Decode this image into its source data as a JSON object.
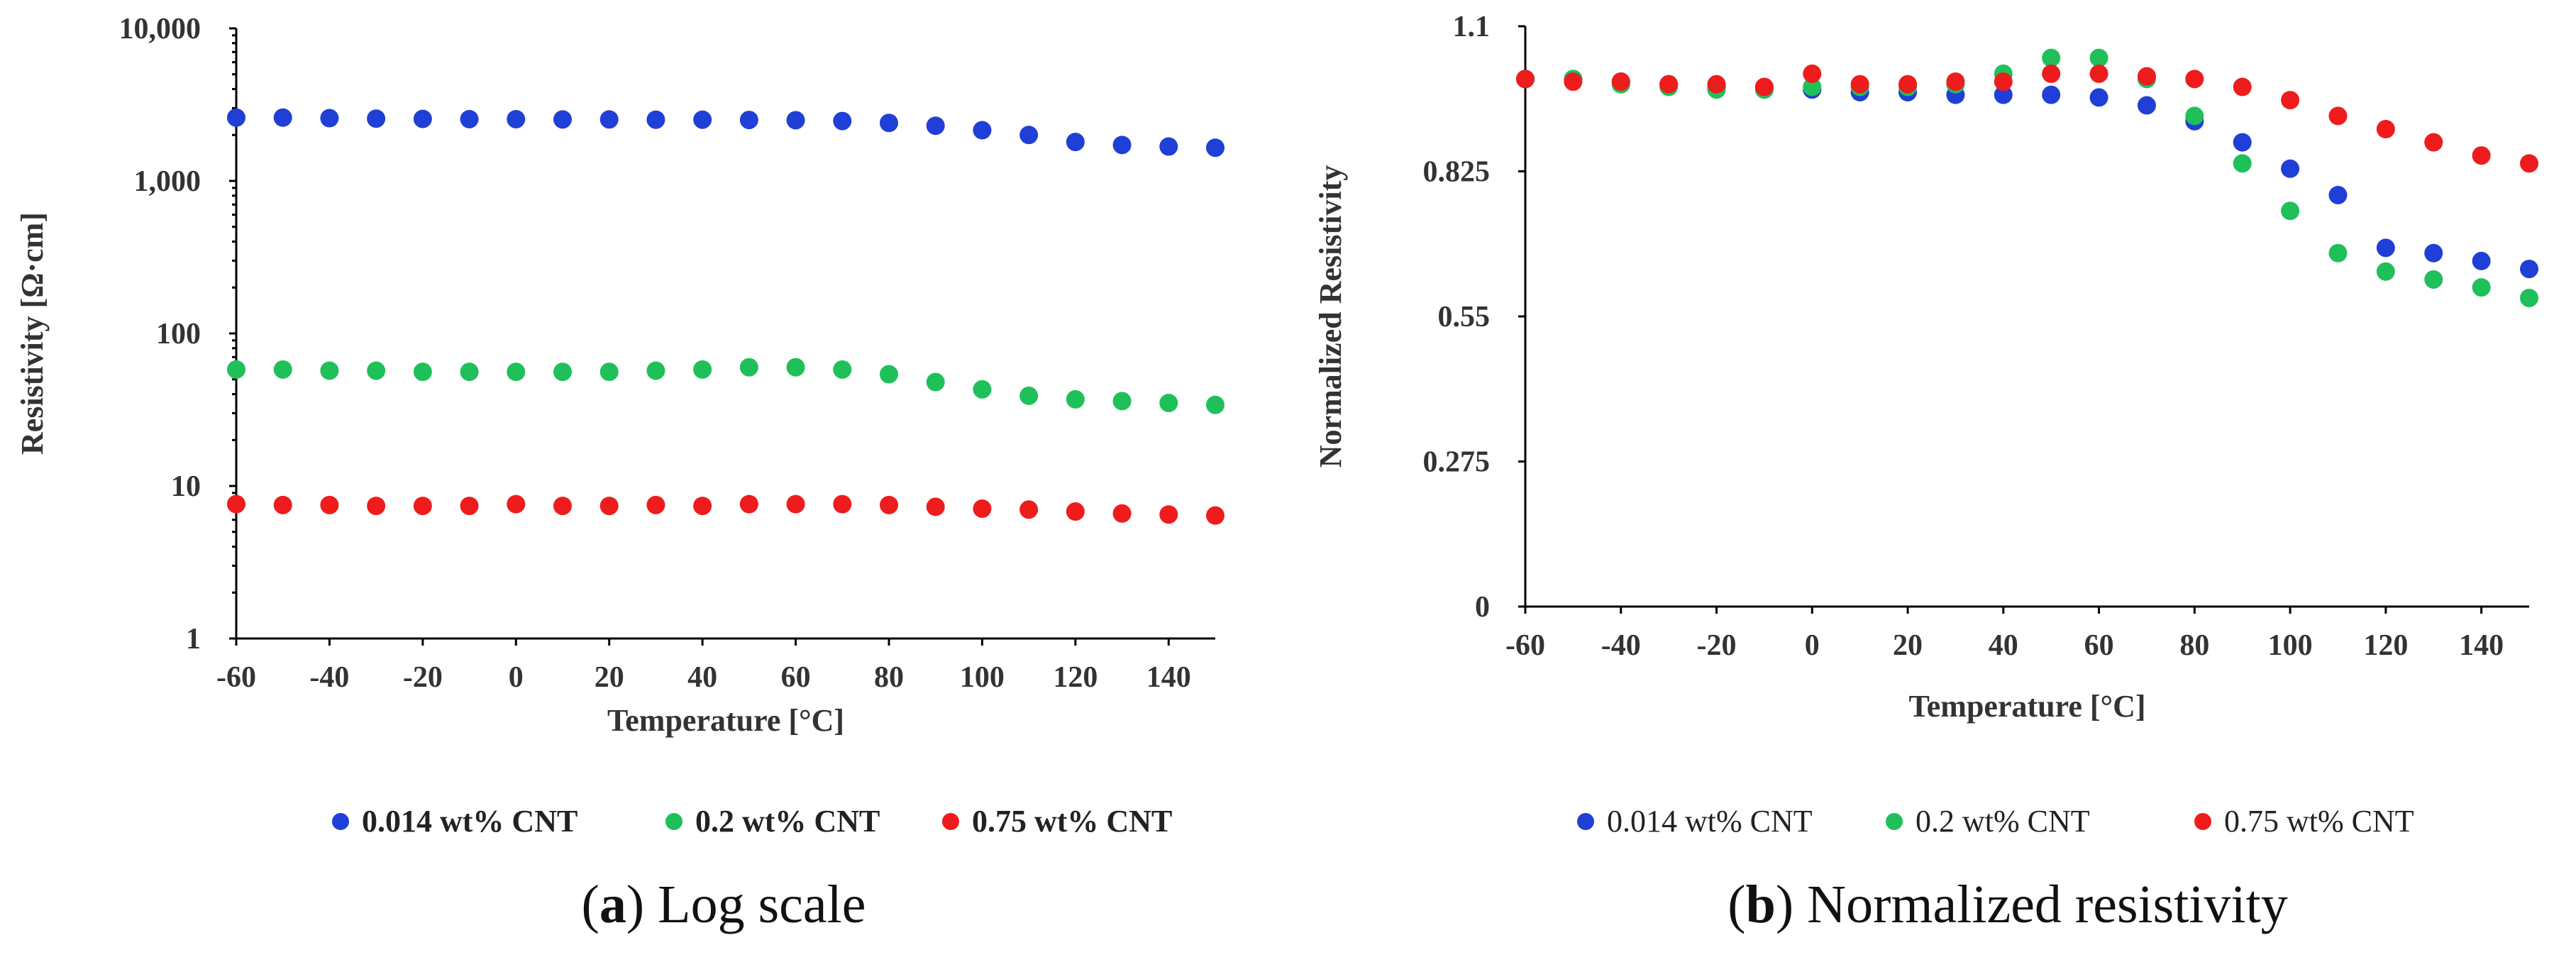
{
  "chart_data": [
    {
      "id": "a",
      "type": "scatter",
      "yscale": "log",
      "caption_letter": "a",
      "caption_text": " Log scale",
      "xlabel": "Temperature [°C]",
      "ylabel": "Resistivity [Ω·cm]",
      "xlim": [
        -60,
        150
      ],
      "ylim": [
        1,
        10000
      ],
      "x_ticks": [
        "-60",
        "-40",
        "-20",
        "0",
        "20",
        "40",
        "60",
        "80",
        "100",
        "120",
        "140"
      ],
      "y_ticks": [
        "1",
        "10",
        "100",
        "1,000",
        "10,000"
      ],
      "grid": false,
      "legend_position": "bottom",
      "x": [
        -60,
        -50,
        -40,
        -30,
        -20,
        -10,
        0,
        10,
        20,
        30,
        40,
        50,
        60,
        70,
        80,
        90,
        100,
        110,
        120,
        130,
        140,
        150
      ],
      "series": [
        {
          "name": "0.014 wt% CNT",
          "color": "#1f3fd6",
          "values": [
            2600,
            2600,
            2580,
            2560,
            2550,
            2540,
            2540,
            2530,
            2530,
            2520,
            2520,
            2510,
            2500,
            2470,
            2400,
            2300,
            2150,
            2000,
            1800,
            1720,
            1680,
            1650
          ]
        },
        {
          "name": "0.2 wt% CNT",
          "color": "#1fc05a",
          "values": [
            58,
            58,
            57,
            57,
            56,
            56,
            56,
            56,
            56,
            57,
            58,
            60,
            60,
            58,
            54,
            48,
            43,
            39,
            37,
            36,
            35,
            34
          ]
        },
        {
          "name": "0.75 wt% CNT",
          "color": "#ee1c1c",
          "values": [
            7.6,
            7.5,
            7.5,
            7.4,
            7.4,
            7.4,
            7.6,
            7.4,
            7.4,
            7.5,
            7.4,
            7.6,
            7.6,
            7.6,
            7.5,
            7.3,
            7.1,
            7.0,
            6.8,
            6.6,
            6.5,
            6.4
          ]
        }
      ]
    },
    {
      "id": "b",
      "type": "scatter",
      "yscale": "linear",
      "caption_letter": "b",
      "caption_text": " Normalized resistivity",
      "xlabel": "Temperature [°C]",
      "ylabel": "Normalized  Resistivity",
      "xlim": [
        -60,
        150
      ],
      "ylim": [
        0,
        1.1
      ],
      "x_ticks": [
        "-60",
        "-40",
        "-20",
        "0",
        "20",
        "40",
        "60",
        "80",
        "100",
        "120",
        "140"
      ],
      "y_ticks": [
        "0",
        "0.275",
        "0.55",
        "0.825",
        "1.1"
      ],
      "grid": false,
      "legend_position": "bottom",
      "x": [
        -60,
        -50,
        -40,
        -30,
        -20,
        -10,
        0,
        10,
        20,
        30,
        40,
        50,
        60,
        70,
        80,
        90,
        100,
        110,
        120,
        130,
        140,
        150
      ],
      "series": [
        {
          "name": "0.014 wt% CNT",
          "color": "#1f3fd6",
          "values": [
            1.0,
            1.0,
            0.995,
            0.99,
            0.985,
            0.98,
            0.98,
            0.975,
            0.975,
            0.97,
            0.97,
            0.97,
            0.965,
            0.95,
            0.92,
            0.88,
            0.83,
            0.78,
            0.68,
            0.67,
            0.655,
            0.64
          ]
        },
        {
          "name": "0.2 wt% CNT",
          "color": "#1fc05a",
          "values": [
            1.0,
            1.0,
            0.99,
            0.985,
            0.98,
            0.98,
            0.985,
            0.985,
            0.985,
            0.99,
            1.01,
            1.04,
            1.04,
            1.0,
            0.93,
            0.84,
            0.75,
            0.67,
            0.635,
            0.62,
            0.605,
            0.585
          ]
        },
        {
          "name": "0.75 wt% CNT",
          "color": "#ee1c1c",
          "values": [
            1.0,
            0.995,
            0.995,
            0.99,
            0.99,
            0.985,
            1.01,
            0.99,
            0.99,
            0.995,
            0.995,
            1.01,
            1.01,
            1.005,
            1.0,
            0.985,
            0.96,
            0.93,
            0.905,
            0.88,
            0.855,
            0.84
          ]
        }
      ]
    }
  ]
}
